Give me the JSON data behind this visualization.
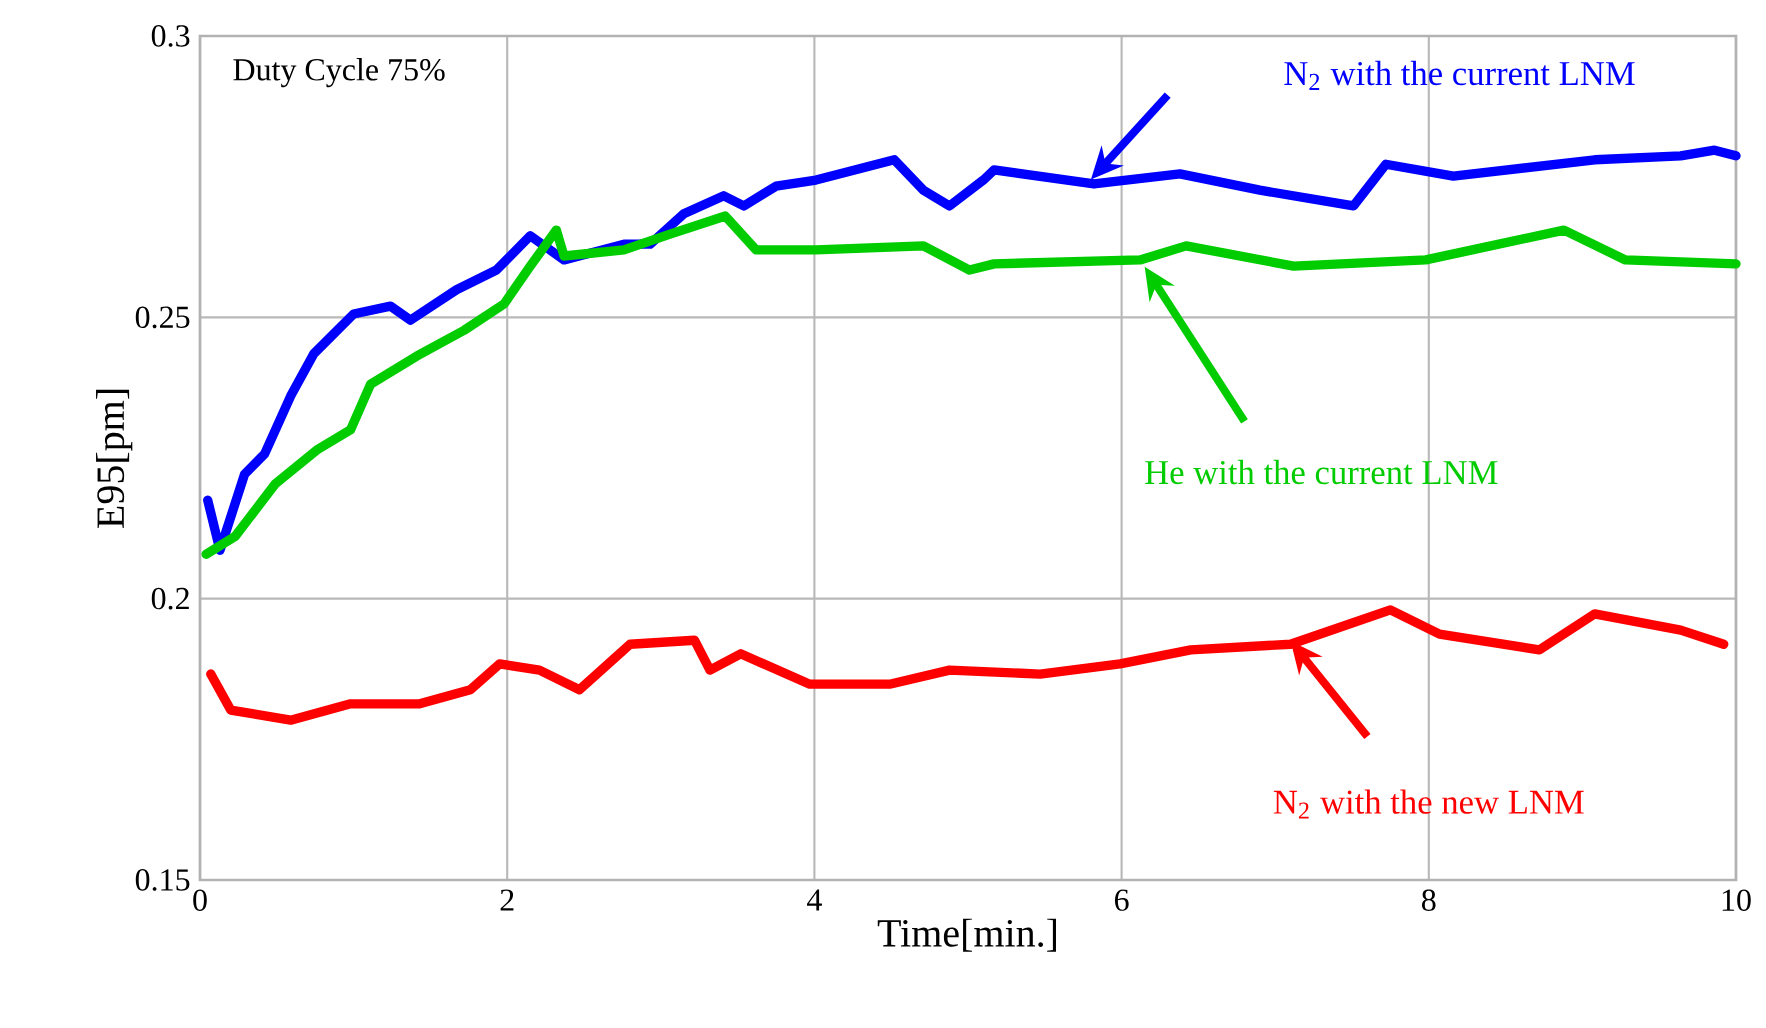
{
  "chart_data": {
    "type": "line",
    "xlabel": "Time[min.]",
    "ylabel": "E95[pm]",
    "xlim": [
      0,
      10
    ],
    "ylim": [
      0.15,
      0.3
    ],
    "xticks": [
      0,
      2,
      4,
      6,
      8,
      10
    ],
    "yticks": [
      0.15,
      0.2,
      0.25,
      0.3
    ],
    "grid": true,
    "annotations": [
      "Duty Cycle 75%"
    ],
    "series": [
      {
        "name": "N$_{2}$ with the current LNM",
        "color": "#0000ff",
        "x": [
          0.05,
          0.13,
          0.29,
          0.42,
          0.59,
          0.74,
          1.0,
          1.24,
          1.37,
          1.67,
          1.93,
          2.15,
          2.37,
          2.76,
          2.93,
          3.15,
          3.41,
          3.54,
          3.75,
          4.01,
          4.52,
          4.71,
          4.88,
          5.1,
          5.17,
          5.82,
          6.38,
          6.9,
          7.51,
          7.72,
          8.16,
          9.08,
          9.64,
          9.86,
          10
        ],
        "values": [
          0.2175,
          0.2086,
          0.2221,
          0.2257,
          0.236,
          0.2435,
          0.2506,
          0.252,
          0.2495,
          0.2549,
          0.2584,
          0.2645,
          0.2602,
          0.263,
          0.263,
          0.2684,
          0.2716,
          0.2698,
          0.2733,
          0.2744,
          0.278,
          0.2726,
          0.2698,
          0.2744,
          0.2762,
          0.2737,
          0.2755,
          0.2726,
          0.2698,
          0.2772,
          0.2751,
          0.278,
          0.2787,
          0.2797,
          0.2787
        ]
      },
      {
        "name": "He with the current LNM",
        "color": "#00cc00",
        "x": [
          0.04,
          0.23,
          0.49,
          0.76,
          0.98,
          1.11,
          1.41,
          1.72,
          1.98,
          2.15,
          2.32,
          2.37,
          2.76,
          3.06,
          3.42,
          3.62,
          4.01,
          4.71,
          5.01,
          5.17,
          6.12,
          6.42,
          7.12,
          7.98,
          8.88,
          9.28,
          10
        ],
        "values": [
          0.2079,
          0.2111,
          0.2204,
          0.2264,
          0.23,
          0.2381,
          0.2431,
          0.2477,
          0.2524,
          0.2591,
          0.2655,
          0.2609,
          0.262,
          0.2648,
          0.268,
          0.262,
          0.262,
          0.2627,
          0.2584,
          0.2595,
          0.2602,
          0.2627,
          0.2591,
          0.2602,
          0.2655,
          0.2602,
          0.2595
        ]
      },
      {
        "name": "N$_{2}$ with the new LNM",
        "color": "#ff0000",
        "x": [
          0.07,
          0.2,
          0.59,
          0.98,
          1.43,
          1.76,
          1.95,
          2.21,
          2.47,
          2.8,
          3.22,
          3.32,
          3.52,
          3.97,
          4.49,
          4.88,
          5.47,
          5.99,
          6.45,
          7.1,
          7.75,
          8.07,
          8.72,
          9.08,
          9.64,
          9.92
        ],
        "values": [
          0.1866,
          0.1802,
          0.1784,
          0.1813,
          0.1813,
          0.1838,
          0.1884,
          0.1873,
          0.1838,
          0.1919,
          0.1926,
          0.1873,
          0.1902,
          0.1848,
          0.1848,
          0.1873,
          0.1866,
          0.1884,
          0.1909,
          0.1919,
          0.198,
          0.1937,
          0.1909,
          0.1973,
          0.1944,
          0.1919
        ]
      }
    ]
  }
}
